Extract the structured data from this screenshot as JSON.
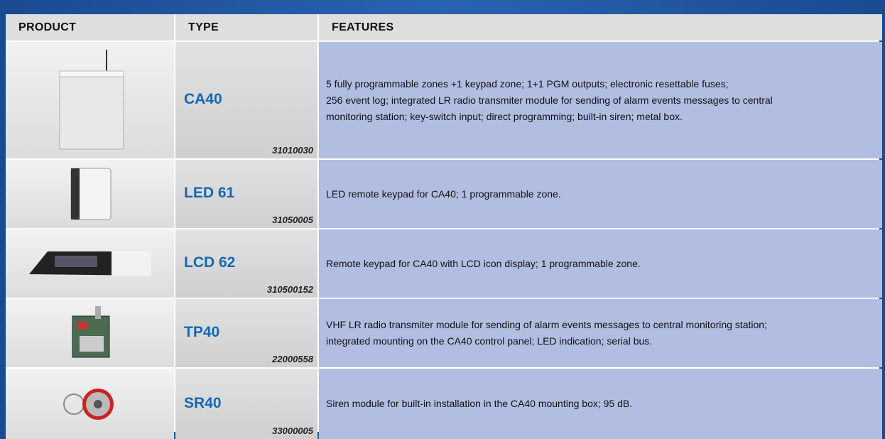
{
  "table": {
    "headers": [
      "PRODUCT",
      "TYPE",
      "FEATURES"
    ],
    "rows": [
      {
        "name": "CA40",
        "code": "31010030",
        "features": [
          "5 fully programmable zones +1 keypad zone; 1+1 PGM outputs; electronic resettable fuses;",
          "256 event log; integrated LR radio transmiter module for sending of alarm events messages to central",
          "monitoring station; key-switch input; direct programming; built-in siren; metal box."
        ]
      },
      {
        "name": "LED 61",
        "code": "31050005",
        "features": [
          "LED remote keypad for CA40; 1 programmable zone."
        ]
      },
      {
        "name": "LCD 62",
        "code": "310500152",
        "features": [
          "Remote keypad for CA40 with LCD icon display; 1 programmable zone."
        ]
      },
      {
        "name": "TP40",
        "code": "22000558",
        "features": [
          "VHF LR radio transmiter module for sending of alarm events messages to central monitoring station;",
          "integrated mounting on the CA40 control panel; LED indication; serial bus."
        ]
      },
      {
        "name": "SR40",
        "code": "33000005",
        "features": [
          "Siren module for built-in installation in the CA40 mounting box; 95 dB."
        ]
      }
    ]
  }
}
